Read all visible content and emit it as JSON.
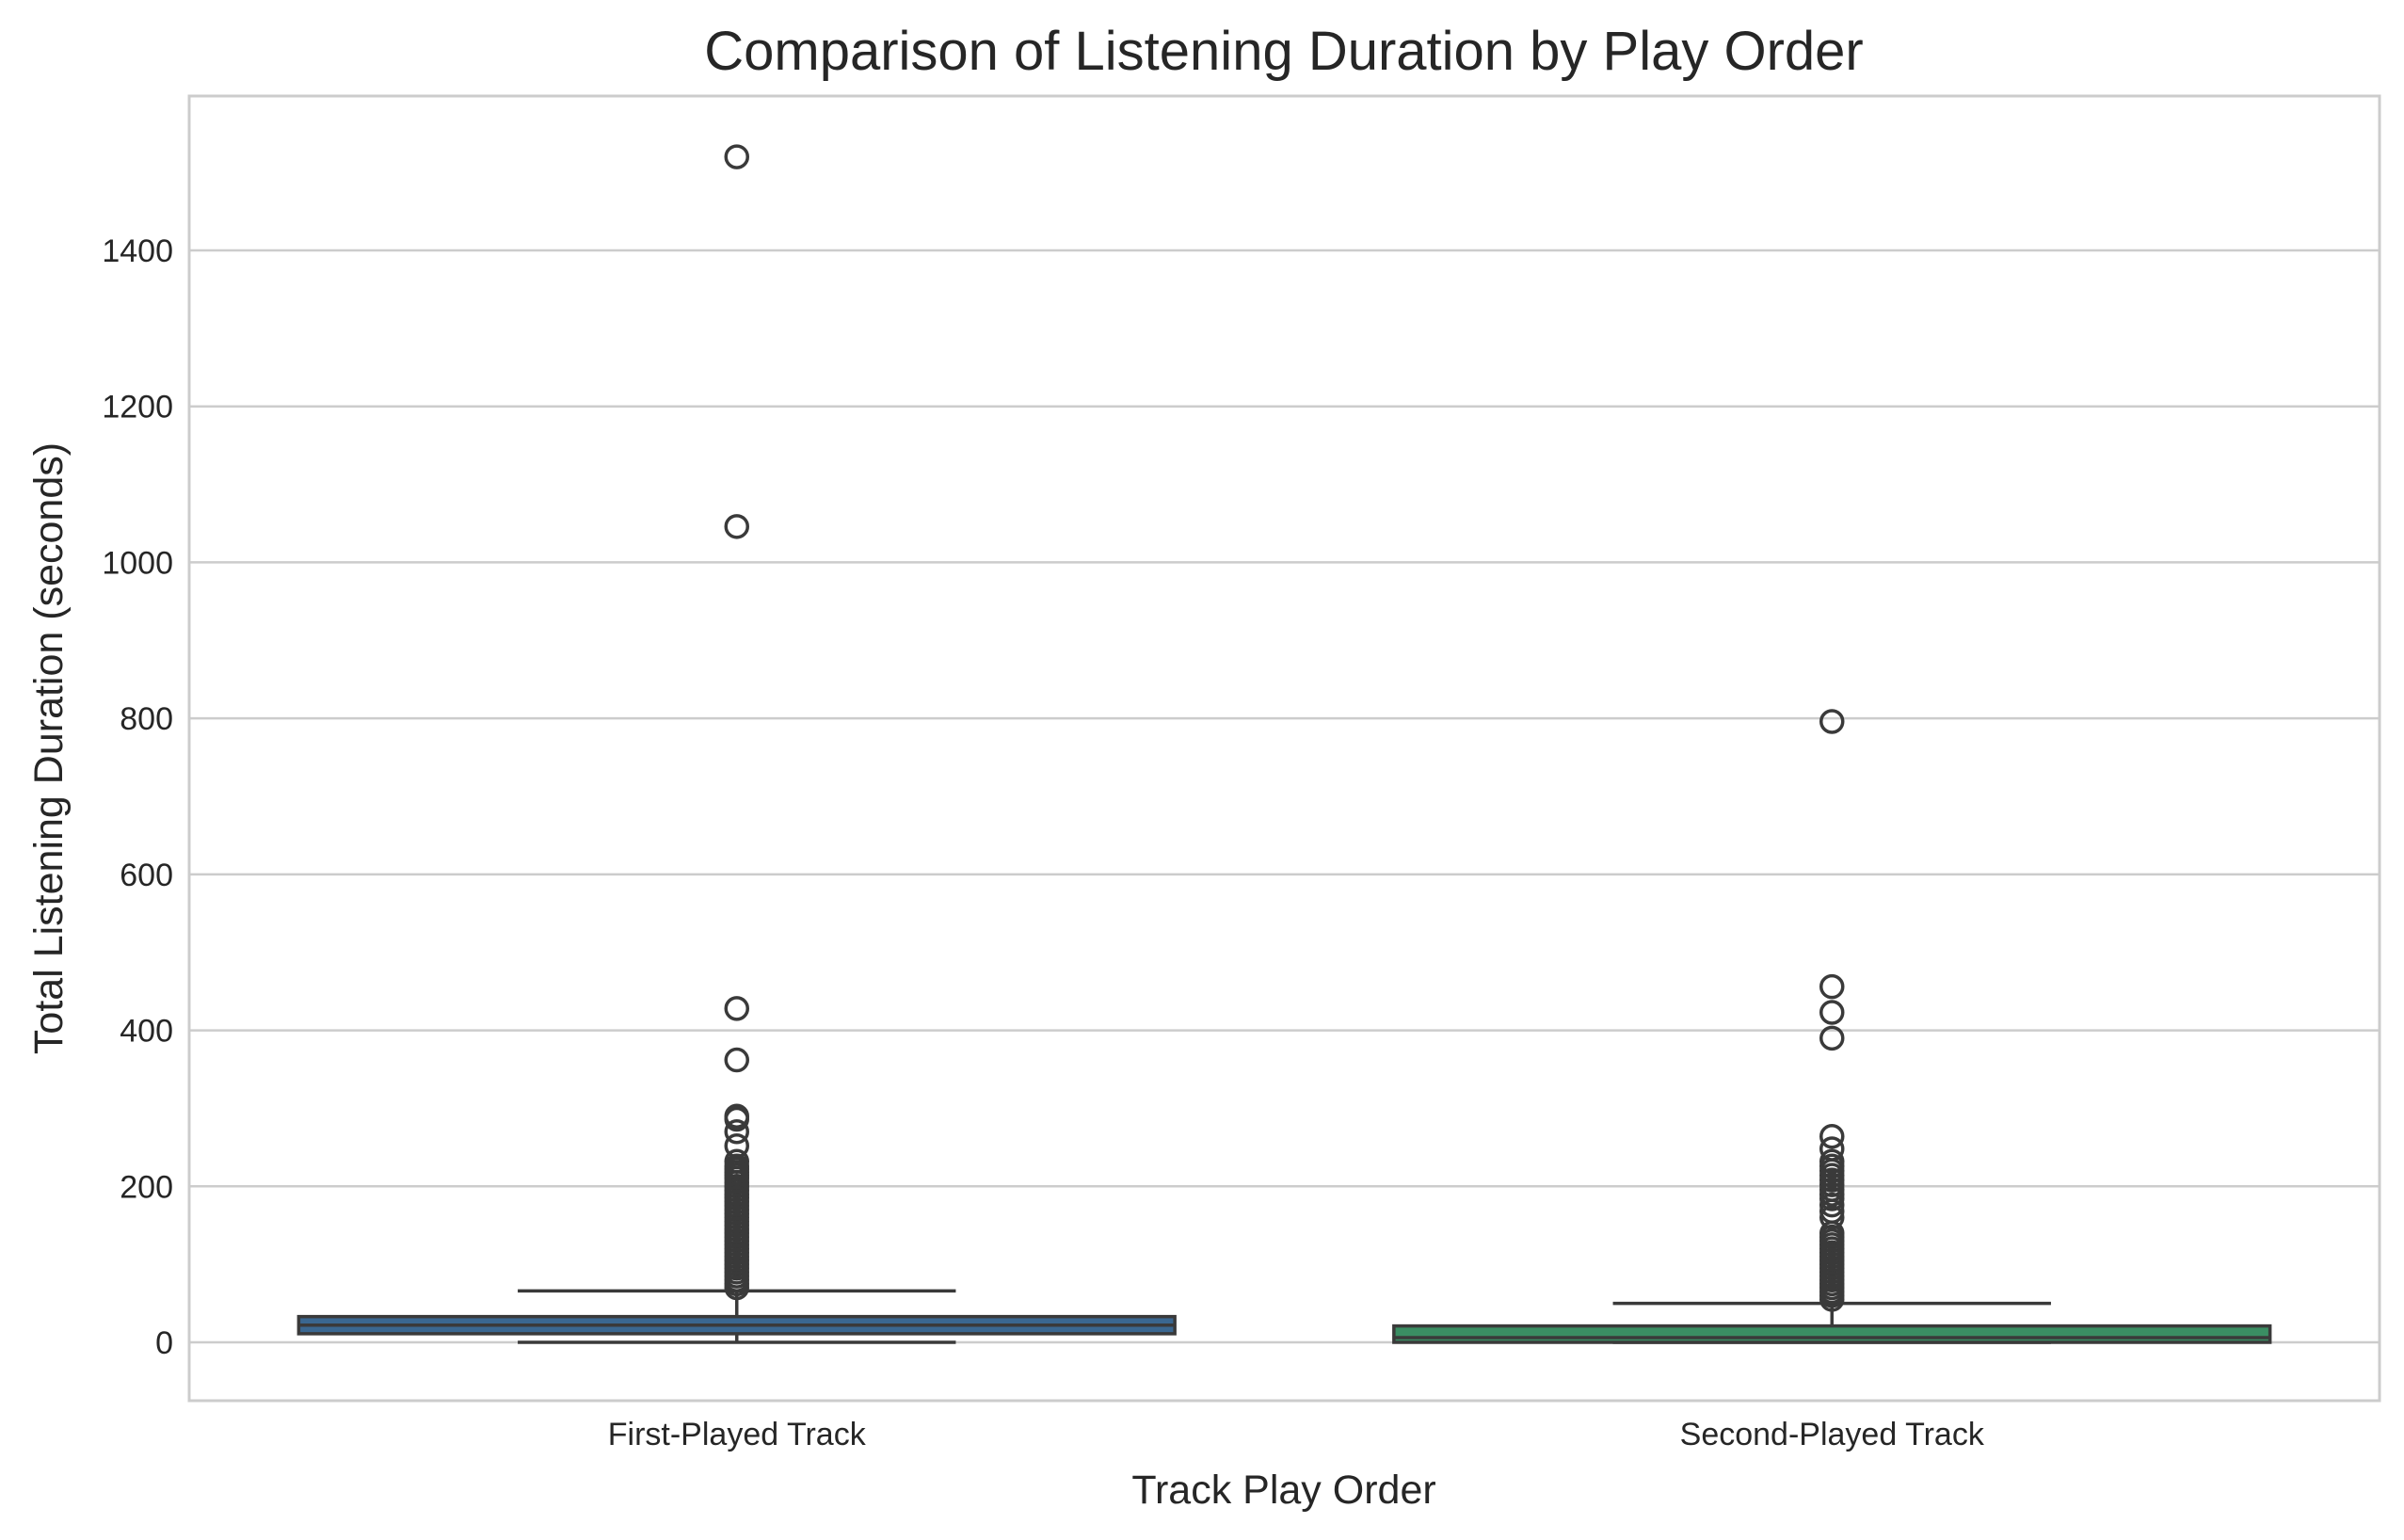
{
  "chart_data": {
    "type": "box",
    "title": "Comparison of Listening Duration by Play Order",
    "xlabel": "Track Play Order",
    "ylabel": "Total Listening Duration (seconds)",
    "categories": [
      "First-Played Track",
      "Second-Played Track"
    ],
    "ylim": [
      -75,
      1595
    ],
    "yticks": [
      0,
      200,
      400,
      600,
      800,
      1000,
      1200,
      1400
    ],
    "grid": "horizontal",
    "boxes": [
      {
        "name": "First-Played Track",
        "color": "#3a6791",
        "whisker_low": 0,
        "q1": 11,
        "median": 22,
        "q3": 33,
        "whisker_high": 66,
        "fliers": [
          1520,
          1046,
          428,
          362,
          290,
          286,
          270,
          252,
          232,
          226,
          222,
          218,
          214,
          210,
          205,
          200,
          195,
          190,
          185,
          180,
          175,
          170,
          165,
          160,
          155,
          150,
          145,
          140,
          135,
          130,
          125,
          120,
          115,
          110,
          105,
          100,
          95,
          90,
          85,
          80,
          75,
          70
        ]
      },
      {
        "name": "Second-Played Track",
        "color": "#3a8e63",
        "whisker_low": 0,
        "q1": 0,
        "median": 6,
        "q3": 21,
        "whisker_high": 50,
        "fliers": [
          796,
          456,
          423,
          390,
          264,
          248,
          232,
          226,
          220,
          214,
          208,
          202,
          196,
          190,
          184,
          176,
          168,
          160,
          140,
          135,
          130,
          125,
          120,
          115,
          110,
          105,
          100,
          95,
          90,
          85,
          80,
          75,
          70,
          65,
          60,
          55
        ]
      }
    ]
  }
}
